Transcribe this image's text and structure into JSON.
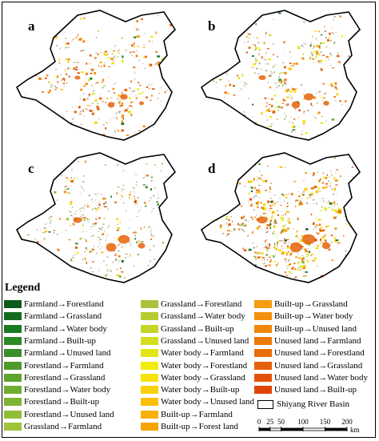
{
  "panels": [
    {
      "id": "a",
      "label": "a"
    },
    {
      "id": "b",
      "label": "b"
    },
    {
      "id": "c",
      "label": "c"
    },
    {
      "id": "d",
      "label": "d"
    }
  ],
  "legend": {
    "title": "Legend",
    "columns": [
      [
        {
          "label": "Farmland→Forestland",
          "color": "#0b5a1a"
        },
        {
          "label": "Farmland→Grassland",
          "color": "#146b1e"
        },
        {
          "label": "Farmland→Water body",
          "color": "#1a7a21"
        },
        {
          "label": "Farmland→Built-up",
          "color": "#2a8a25"
        },
        {
          "label": "Farmland→Unused land",
          "color": "#3b8f2b"
        },
        {
          "label": "Forestland→Farmland",
          "color": "#4d9a2c"
        },
        {
          "label": "Forestland→Grassland",
          "color": "#5ea52e"
        },
        {
          "label": "Forestland→Water body",
          "color": "#6ead31"
        },
        {
          "label": "Forestland→Built-up",
          "color": "#7fb534"
        },
        {
          "label": "Forestland→Unused land",
          "color": "#90be36"
        },
        {
          "label": "Grassland→Farmland",
          "color": "#9fc43a"
        }
      ],
      [
        {
          "label": "Grassland→Forestland",
          "color": "#a9c43c"
        },
        {
          "label": "Grassland→Water body",
          "color": "#b7cc2f"
        },
        {
          "label": "Grassland→Built-up",
          "color": "#c6d526"
        },
        {
          "label": "Grassland→Unused land",
          "color": "#d5dd1c"
        },
        {
          "label": "Water body→Farmland",
          "color": "#e4e514"
        },
        {
          "label": "Water body→Forestland",
          "color": "#f2ec0c"
        },
        {
          "label": "Water body→Grassland",
          "color": "#f7e30a"
        },
        {
          "label": "Water body→Built-up",
          "color": "#f9d108"
        },
        {
          "label": "Water body→Unused land",
          "color": "#fbbf06"
        },
        {
          "label": "Built-up→Farmland",
          "color": "#f8b004"
        },
        {
          "label": "Built-up→Forest land",
          "color": "#f4a402"
        }
      ],
      [
        {
          "label": "Built-up→Grassland",
          "color": "#f59c12"
        },
        {
          "label": "Built-up→Water body",
          "color": "#f3910e"
        },
        {
          "label": "Built-up→Unused land",
          "color": "#f0860c"
        },
        {
          "label": "Unused land→Farmland",
          "color": "#ec7a0a"
        },
        {
          "label": "Unused land→Forestland",
          "color": "#e96d09"
        },
        {
          "label": "Unused land→Grassland",
          "color": "#e66008"
        },
        {
          "label": "Unused land→Water body",
          "color": "#e35307"
        },
        {
          "label": "Unused land→Built-up",
          "color": "#e04506"
        }
      ]
    ],
    "basin_label": "Shiyang River Basin"
  },
  "scale_bar": {
    "ticks": [
      "0",
      "25",
      "50",
      "100",
      "150",
      "200"
    ],
    "unit": "km"
  }
}
